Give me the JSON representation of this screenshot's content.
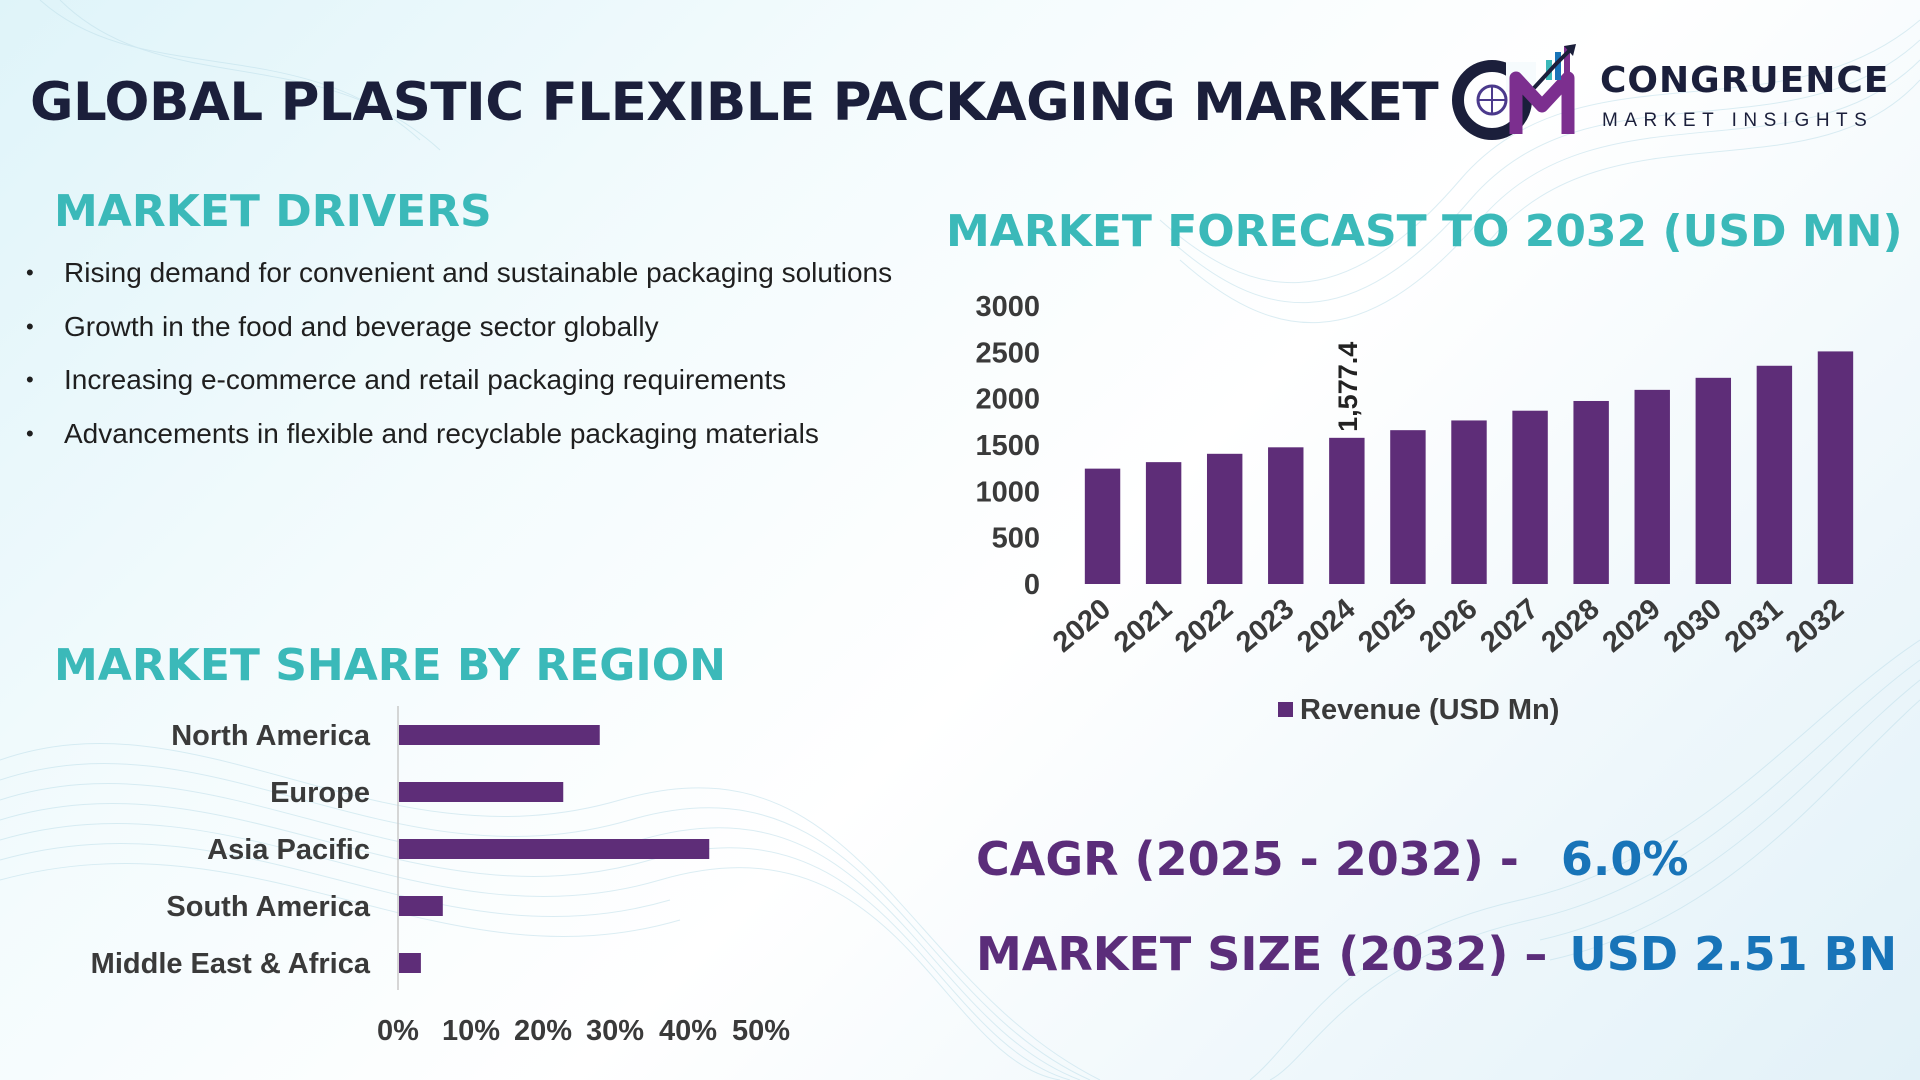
{
  "title": "GLOBAL PLASTIC FLEXIBLE PACKAGING MARKET",
  "logo": {
    "initials": "CM",
    "name": "CONGRUENCE",
    "subtitle": "MARKET INSIGHTS"
  },
  "drivers": {
    "title": "MARKET DRIVERS",
    "items": [
      "Rising demand for convenient and sustainable packaging solutions",
      "Growth in the food and beverage sector globally",
      "Increasing e-commerce and retail packaging requirements",
      "Advancements in flexible and recyclable packaging materials"
    ]
  },
  "share": {
    "title": "MARKET SHARE BY REGION"
  },
  "forecast": {
    "title": "MARKET FORECAST TO 2032 (USD MN)"
  },
  "kpis": {
    "cagr_label": "CAGR (2025 - 2032) -",
    "cagr_value": "6.0%",
    "size_label": "MARKET SIZE (2032) –",
    "size_value": "USD 2.51 BN"
  },
  "colors": {
    "bar": "#5e2d78",
    "teal": "#3bb9b9",
    "blue": "#1874b8",
    "purple_text": "#5b2d7a",
    "dark": "#1b1f3b"
  },
  "chart_data": [
    {
      "type": "bar",
      "orientation": "vertical",
      "title": "MARKET FORECAST TO 2032 (USD MN)",
      "categories": [
        "2020",
        "2021",
        "2022",
        "2023",
        "2024",
        "2025",
        "2026",
        "2027",
        "2028",
        "2029",
        "2030",
        "2031",
        "2032"
      ],
      "series": [
        {
          "name": "Revenue (USD Mn)",
          "values": [
            1245,
            1315,
            1405,
            1475,
            1577.4,
            1660,
            1765,
            1870,
            1975,
            2095,
            2225,
            2355,
            2510
          ]
        }
      ],
      "data_labels": [
        {
          "index": 4,
          "text": "1,577.4"
        }
      ],
      "yticks": [
        "3000",
        "2500",
        "2000",
        "1500",
        "1000",
        "500",
        "0"
      ],
      "ylim": [
        0,
        3000
      ],
      "legend": "bottom",
      "grid": false
    },
    {
      "type": "bar",
      "orientation": "horizontal",
      "title": "MARKET SHARE BY REGION",
      "categories": [
        "North America",
        "Europe",
        "Asia Pacific",
        "South America",
        "Middle East & Africa"
      ],
      "values": [
        27.5,
        22.5,
        42.5,
        6,
        3
      ],
      "unit": "%",
      "xticks": [
        "0%",
        "10%",
        "20%",
        "30%",
        "40%",
        "50%"
      ],
      "xlim": [
        0,
        50
      ],
      "grid": false
    }
  ]
}
